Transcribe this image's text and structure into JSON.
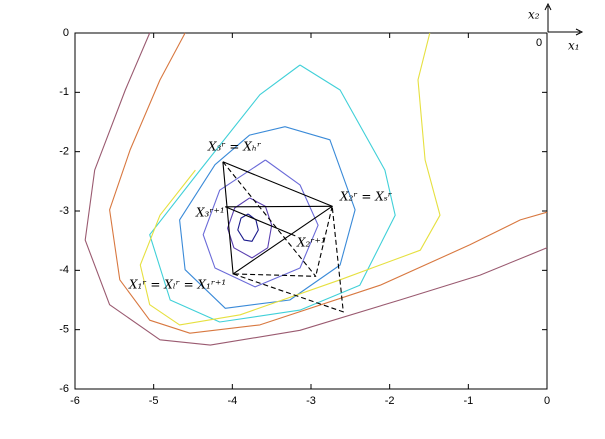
{
  "chart_data": {
    "type": "contour",
    "xlim": [
      -6,
      0
    ],
    "ylim": [
      -6,
      0
    ],
    "xticks": [
      -6,
      -5,
      -4,
      -3,
      -2,
      -1,
      0
    ],
    "yticks": [
      -6,
      -5,
      -4,
      -3,
      -2,
      -1,
      0
    ],
    "contours": [
      {
        "color": "#1a1a8c",
        "x": [
          -3.8,
          -3.7,
          -3.67,
          -3.75,
          -3.85,
          -3.93,
          -3.89,
          -3.8
        ],
        "y": [
          -3.05,
          -3.15,
          -3.32,
          -3.51,
          -3.49,
          -3.32,
          -3.12,
          -3.05
        ]
      },
      {
        "color": "#5a3fb0",
        "x": [
          -3.78,
          -3.58,
          -3.5,
          -3.55,
          -3.75,
          -3.98,
          -4.06,
          -3.97,
          -3.78
        ],
        "y": [
          -2.78,
          -2.92,
          -3.24,
          -3.62,
          -3.79,
          -3.62,
          -3.29,
          -2.95,
          -2.78
        ]
      },
      {
        "color": "#6a6ad8",
        "x": [
          -3.58,
          -3.14,
          -2.91,
          -3.14,
          -3.71,
          -4.22,
          -4.37,
          -4.16,
          -3.58
        ],
        "y": [
          -2.14,
          -2.56,
          -3.24,
          -3.96,
          -4.28,
          -3.96,
          -3.4,
          -2.65,
          -2.14
        ]
      },
      {
        "color": "#3a8ad8",
        "x": [
          -3.33,
          -2.76,
          -2.44,
          -2.63,
          -3.27,
          -4.09,
          -4.6,
          -4.67,
          -4.22,
          -3.78,
          -3.33
        ],
        "y": [
          -1.58,
          -1.8,
          -2.98,
          -3.91,
          -4.5,
          -4.64,
          -3.99,
          -3.15,
          -2.22,
          -1.72,
          -1.58
        ]
      },
      {
        "color": "#40d0d8",
        "x": [
          -3.14,
          -2.63,
          -2.06,
          -1.93,
          -2.38,
          -3.14,
          -4.16,
          -4.79,
          -5.05,
          -4.41,
          -3.65,
          -3.14
        ],
        "y": [
          -0.54,
          -0.96,
          -2.31,
          -3.07,
          -4.25,
          -4.67,
          -4.87,
          -4.5,
          -3.4,
          -2.31,
          -1.04,
          -0.54
        ]
      },
      {
        "color": "#e6e040",
        "x": [
          -1.49,
          -1.64,
          -1.55,
          -1.36,
          -1.61,
          -2.63,
          -3.9,
          -4.67,
          -5.05,
          -5.17,
          -4.92,
          -4.47
        ],
        "y": [
          0,
          -0.79,
          -2.14,
          -3.07,
          -3.66,
          -4.16,
          -4.75,
          -4.92,
          -4.58,
          -3.91,
          -3.07,
          -2.31
        ]
      },
      {
        "color": "#d87840",
        "x": [
          -4.6,
          -4.92,
          -5.3,
          -5.56,
          -5.43,
          -5.05,
          -4.54,
          -3.65,
          -2.12,
          -0.98,
          -0.34,
          0
        ],
        "y": [
          0,
          -0.79,
          -1.97,
          -2.98,
          -4.16,
          -4.84,
          -5.06,
          -4.92,
          -4.25,
          -3.57,
          -3.15,
          -3.02
        ]
      },
      {
        "color": "#9a5a70",
        "x": [
          -5.05,
          -5.36,
          -5.75,
          -5.87,
          -5.56,
          -4.92,
          -4.28,
          -3.14,
          -1.87,
          -0.85,
          0
        ],
        "y": [
          0,
          -0.96,
          -2.31,
          -3.49,
          -4.58,
          -5.17,
          -5.26,
          -5.01,
          -4.5,
          -4.08,
          -3.62
        ]
      }
    ],
    "simplex_lines": [
      {
        "style": "solid",
        "x": [
          -4.12,
          -2.73,
          -3.99,
          -4.12
        ],
        "y": [
          -2.17,
          -2.92,
          -4.06,
          -2.17
        ]
      },
      {
        "style": "solid",
        "x": [
          -4.09,
          -2.73
        ],
        "y": [
          -2.93,
          -2.92
        ]
      },
      {
        "style": "solid",
        "x": [
          -4.09,
          -3.2
        ],
        "y": [
          -2.93,
          -3.42
        ]
      },
      {
        "style": "dashed",
        "x": [
          -4.12,
          -2.94,
          -3.99
        ],
        "y": [
          -2.17,
          -4.1,
          -4.06
        ]
      },
      {
        "style": "dashed",
        "x": [
          -2.73,
          -2.94
        ],
        "y": [
          -2.92,
          -4.1
        ]
      },
      {
        "style": "dashed",
        "x": [
          -3.99,
          -2.59,
          -2.73
        ],
        "y": [
          -4.06,
          -4.7,
          -2.92
        ]
      }
    ],
    "annotations": [
      "X₃ʳ = Xₕʳ",
      "X₂ʳ = Xₛʳ",
      "X₃ʳ⁺¹",
      "X₂ʳ⁺¹",
      "X₁ʳ = Xₗʳ = X₁ʳ⁺¹"
    ],
    "inset": {
      "x_label": "x₁",
      "y_label": "x₂",
      "origin": "0"
    }
  }
}
